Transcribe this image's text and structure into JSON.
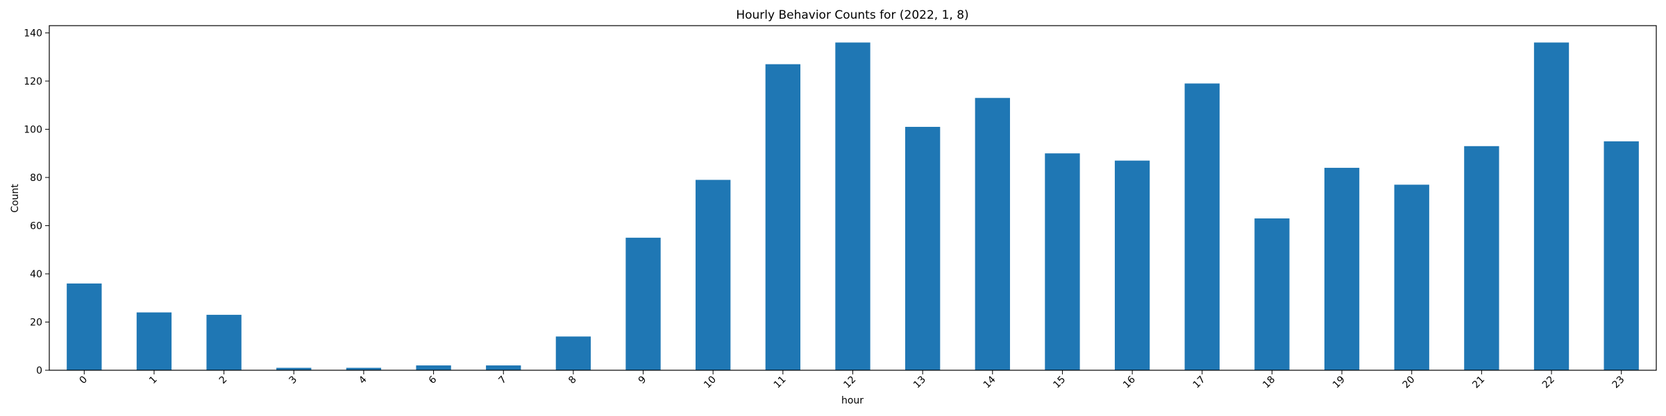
{
  "chart_data": {
    "type": "bar",
    "title": "Hourly Behavior Counts for (2022, 1, 8)",
    "xlabel": "hour",
    "ylabel": "Count",
    "categories": [
      "0",
      "1",
      "2",
      "3",
      "4",
      "6",
      "7",
      "8",
      "9",
      "10",
      "11",
      "12",
      "13",
      "14",
      "15",
      "16",
      "17",
      "18",
      "19",
      "20",
      "21",
      "22",
      "23"
    ],
    "values": [
      36,
      24,
      23,
      1,
      1,
      2,
      2,
      14,
      55,
      79,
      127,
      136,
      101,
      113,
      90,
      87,
      119,
      63,
      84,
      77,
      93,
      136,
      95
    ],
    "ylim": [
      0,
      143
    ],
    "yticks": [
      0,
      20,
      40,
      60,
      80,
      100,
      120,
      140
    ],
    "bar_color": "#1f77b4",
    "x_tick_rotation": "45°",
    "grid": false,
    "legend": "none"
  }
}
